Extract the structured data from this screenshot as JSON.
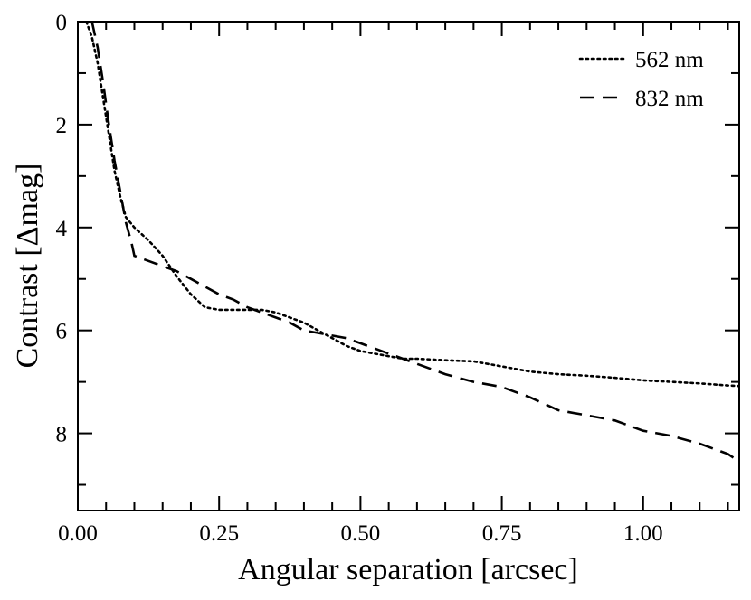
{
  "chart_data": {
    "type": "line",
    "title": "",
    "xlabel": "Angular separation [arcsec]",
    "ylabel": "Contrast [Δmag]",
    "xlim": [
      0,
      1.17
    ],
    "ylim": [
      9.5,
      0
    ],
    "y_inverted": true,
    "grid": false,
    "legend_position": "top-right",
    "x_major_ticks": [
      0,
      0.25,
      0.5,
      0.75,
      1.0
    ],
    "x_tick_labels": [
      "0.00",
      "0.25",
      "0.50",
      "0.75",
      "1.00"
    ],
    "x_minor_step": 0.05,
    "y_major_ticks": [
      0,
      2,
      4,
      6,
      8
    ],
    "y_tick_labels": [
      "0",
      "2",
      "4",
      "6",
      "8"
    ],
    "y_minor_step": 1,
    "series": [
      {
        "name": "562 nm",
        "dash": "dotted",
        "color": "#000000",
        "x": [
          0.015,
          0.025,
          0.035,
          0.045,
          0.055,
          0.065,
          0.075,
          0.085,
          0.1,
          0.125,
          0.15,
          0.175,
          0.2,
          0.225,
          0.25,
          0.275,
          0.3,
          0.325,
          0.35,
          0.375,
          0.4,
          0.425,
          0.45,
          0.475,
          0.5,
          0.525,
          0.55,
          0.575,
          0.6,
          0.65,
          0.7,
          0.75,
          0.8,
          0.85,
          0.9,
          0.95,
          1.0,
          1.05,
          1.1,
          1.15,
          1.17
        ],
        "y": [
          0.0,
          0.3,
          0.8,
          1.5,
          2.2,
          2.9,
          3.4,
          3.8,
          4.0,
          4.25,
          4.55,
          4.95,
          5.3,
          5.55,
          5.6,
          5.6,
          5.6,
          5.6,
          5.65,
          5.75,
          5.85,
          6.0,
          6.15,
          6.3,
          6.4,
          6.45,
          6.5,
          6.55,
          6.55,
          6.58,
          6.6,
          6.7,
          6.8,
          6.85,
          6.88,
          6.92,
          6.97,
          7.0,
          7.03,
          7.07,
          7.08
        ]
      },
      {
        "name": "832 nm",
        "dash": "dashed",
        "color": "#000000",
        "x": [
          0.025,
          0.035,
          0.045,
          0.055,
          0.065,
          0.075,
          0.085,
          0.095,
          0.1,
          0.125,
          0.15,
          0.175,
          0.2,
          0.225,
          0.25,
          0.275,
          0.3,
          0.325,
          0.35,
          0.375,
          0.4,
          0.425,
          0.45,
          0.475,
          0.5,
          0.525,
          0.55,
          0.575,
          0.6,
          0.65,
          0.7,
          0.75,
          0.8,
          0.85,
          0.9,
          0.95,
          1.0,
          1.05,
          1.1,
          1.15,
          1.17
        ],
        "y": [
          0.0,
          0.5,
          1.2,
          2.0,
          2.7,
          3.3,
          3.9,
          4.3,
          4.55,
          4.65,
          4.75,
          4.85,
          5.0,
          5.15,
          5.3,
          5.4,
          5.55,
          5.65,
          5.75,
          5.85,
          6.0,
          6.05,
          6.1,
          6.15,
          6.25,
          6.35,
          6.45,
          6.55,
          6.65,
          6.85,
          7.0,
          7.1,
          7.3,
          7.55,
          7.65,
          7.75,
          7.95,
          8.05,
          8.2,
          8.4,
          8.55
        ]
      }
    ]
  }
}
